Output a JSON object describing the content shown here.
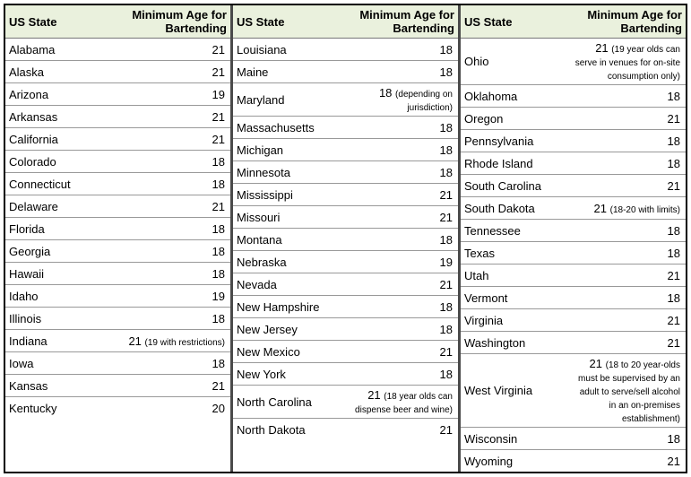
{
  "headers": {
    "state": "US State",
    "age": "Minimum Age for Bartending"
  },
  "columns": [
    [
      {
        "state": "Alabama",
        "age": "21"
      },
      {
        "state": "Alaska",
        "age": "21"
      },
      {
        "state": "Arizona",
        "age": "19"
      },
      {
        "state": "Arkansas",
        "age": "21"
      },
      {
        "state": "California",
        "age": "21"
      },
      {
        "state": "Colorado",
        "age": "18"
      },
      {
        "state": "Connecticut",
        "age": "18"
      },
      {
        "state": "Delaware",
        "age": "21"
      },
      {
        "state": "Florida",
        "age": "18"
      },
      {
        "state": "Georgia",
        "age": "18"
      },
      {
        "state": "Hawaii",
        "age": "18"
      },
      {
        "state": "Idaho",
        "age": "19"
      },
      {
        "state": "Illinois",
        "age": "18"
      },
      {
        "state": "Indiana",
        "age": "21",
        "note": "(19 with restrictions)"
      },
      {
        "state": "Iowa",
        "age": "18"
      },
      {
        "state": "Kansas",
        "age": "21"
      },
      {
        "state": "Kentucky",
        "age": "20"
      }
    ],
    [
      {
        "state": "Louisiana",
        "age": "18"
      },
      {
        "state": "Maine",
        "age": "18"
      },
      {
        "state": "Maryland",
        "age": "18",
        "note": "(depending on jurisdiction)"
      },
      {
        "state": "Massachusetts",
        "age": "18"
      },
      {
        "state": "Michigan",
        "age": "18"
      },
      {
        "state": "Minnesota",
        "age": "18"
      },
      {
        "state": "Mississippi",
        "age": "21"
      },
      {
        "state": "Missouri",
        "age": "21"
      },
      {
        "state": "Montana",
        "age": "18"
      },
      {
        "state": "Nebraska",
        "age": "19"
      },
      {
        "state": "Nevada",
        "age": "21"
      },
      {
        "state": "New Hampshire",
        "age": "18"
      },
      {
        "state": "New Jersey",
        "age": "18"
      },
      {
        "state": "New Mexico",
        "age": "21"
      },
      {
        "state": "New York",
        "age": "18"
      },
      {
        "state": "North Carolina",
        "age": "21",
        "note": "(18 year olds can dispense beer and wine)"
      },
      {
        "state": "North Dakota",
        "age": "21"
      }
    ],
    [
      {
        "state": "Ohio",
        "age": "21",
        "note": "(19 year olds can serve in venues for on-site consumption only)"
      },
      {
        "state": "Oklahoma",
        "age": "18"
      },
      {
        "state": "Oregon",
        "age": "21"
      },
      {
        "state": "Pennsylvania",
        "age": "18"
      },
      {
        "state": "Rhode Island",
        "age": "18"
      },
      {
        "state": "South Carolina",
        "age": "21"
      },
      {
        "state": "South Dakota",
        "age": "21",
        "note": "(18-20 with limits)"
      },
      {
        "state": "Tennessee",
        "age": "18"
      },
      {
        "state": "Texas",
        "age": "18"
      },
      {
        "state": "Utah",
        "age": "21"
      },
      {
        "state": "Vermont",
        "age": "18"
      },
      {
        "state": "Virginia",
        "age": "21"
      },
      {
        "state": "Washington",
        "age": "21"
      },
      {
        "state": "West Virginia",
        "age": "21",
        "note": "(18 to 20 year-olds must be supervised by an adult to serve/sell alcohol in an on-premises establishment)"
      },
      {
        "state": "Wisconsin",
        "age": "18"
      },
      {
        "state": "Wyoming",
        "age": "21"
      }
    ]
  ],
  "style": {
    "header_bg": "#eaf1dd",
    "border_color": "#000000",
    "divider_color": "#4a4a4a",
    "row_border": "#999999",
    "font_main": 13,
    "font_note": 10
  }
}
